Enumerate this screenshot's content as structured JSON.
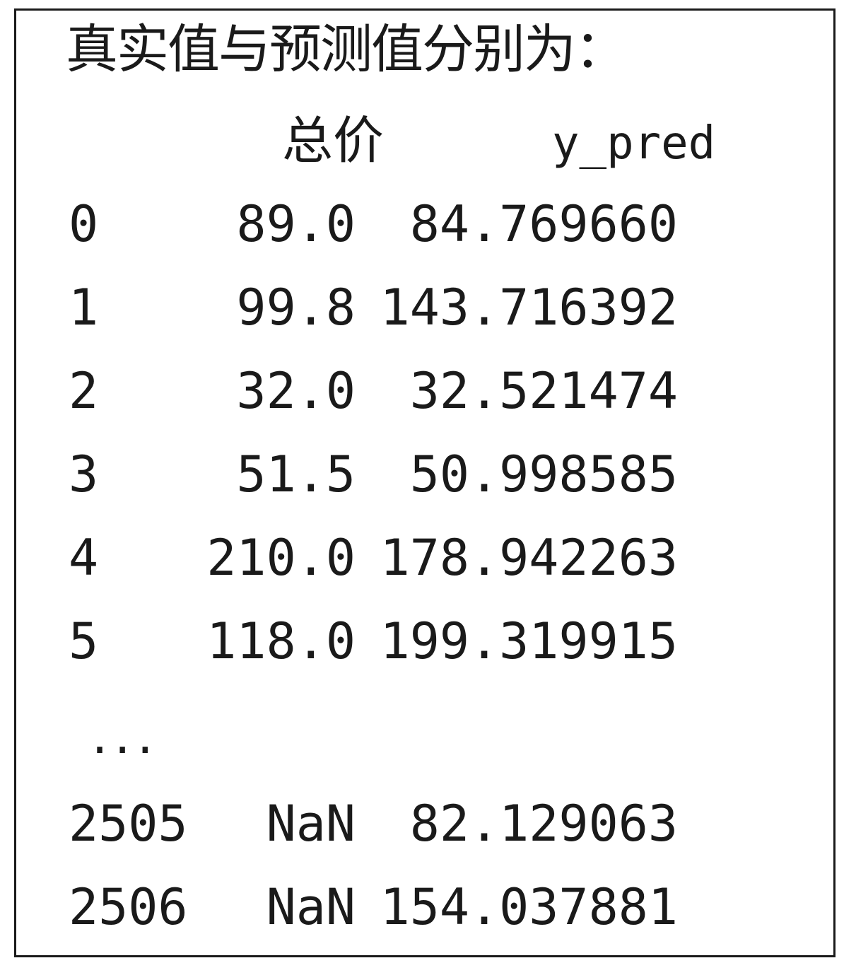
{
  "title": "真实值与预测值分别为：",
  "columns": {
    "price": "总价",
    "pred": "y_pred"
  },
  "rows": [
    {
      "index": "0",
      "price": "89.0",
      "pred": "84.769660"
    },
    {
      "index": "1",
      "price": "99.8",
      "pred": "143.716392"
    },
    {
      "index": "2",
      "price": "32.0",
      "pred": "32.521474"
    },
    {
      "index": "3",
      "price": "51.5",
      "pred": "50.998585"
    },
    {
      "index": "4",
      "price": "210.0",
      "pred": "178.942263"
    },
    {
      "index": "5",
      "price": "118.0",
      "pred": "199.319915"
    }
  ],
  "ellipsis": "...",
  "tail_rows": [
    {
      "index": "2505",
      "price": "NaN",
      "pred": "82.129063"
    },
    {
      "index": "2506",
      "price": "NaN",
      "pred": "154.037881"
    }
  ]
}
